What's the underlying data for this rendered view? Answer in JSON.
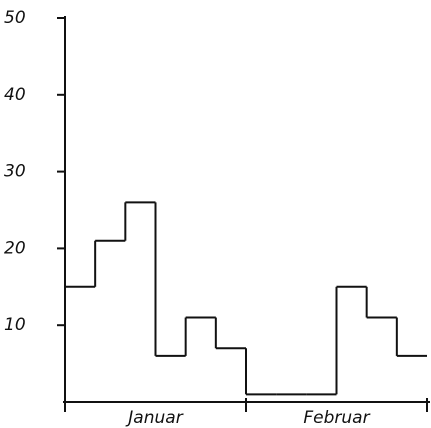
{
  "chart_data": {
    "type": "step",
    "categories": [
      null,
      null,
      null,
      null,
      null,
      null,
      null,
      null,
      null,
      null,
      null,
      null
    ],
    "x_groups": [
      "Januar",
      "Februar"
    ],
    "values": [
      15,
      21,
      26,
      6,
      11,
      7,
      1,
      1,
      1,
      15,
      11,
      6
    ],
    "color": "#111111",
    "ylim": [
      0,
      50
    ],
    "yticks": [
      10,
      20,
      30,
      40,
      50
    ],
    "grid": false
  }
}
